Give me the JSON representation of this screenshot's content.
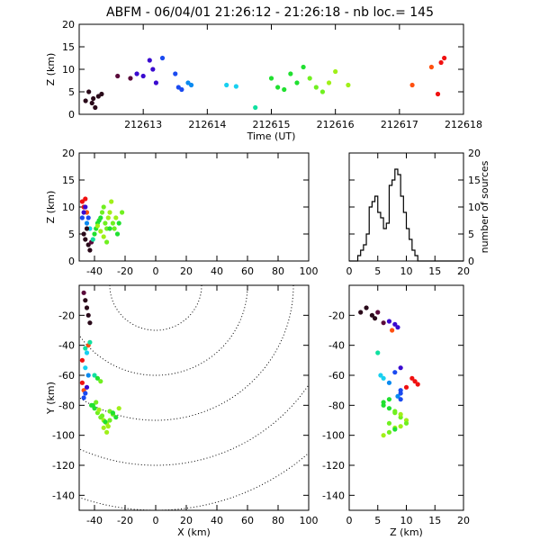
{
  "title": "ABFM - 06/04/01 21:26:12 - 21:26:18 - nb loc.=     145",
  "colors": [
    "#2a0a1a",
    "#5a0a3a",
    "#3a0ad0",
    "#1a4af0",
    "#0a8af0",
    "#18d0f0",
    "#10e0a0",
    "#20e030",
    "#70f020",
    "#a0f018",
    "#ff5010",
    "#f01010"
  ],
  "chart_data": [
    {
      "type": "scatter",
      "name": "time-z",
      "xlabel": "Time (UT)",
      "ylabel": "Z (km)",
      "xlim": [
        212612,
        212618
      ],
      "ylim": [
        0,
        20
      ],
      "xticks": [
        "212613",
        "212614",
        "212615",
        "212616",
        "212617",
        "212618"
      ],
      "yticks": [
        "0",
        "5",
        "10",
        "15",
        "20"
      ],
      "x": [
        212612.1,
        212612.15,
        212612.2,
        212612.22,
        212612.25,
        212612.3,
        212612.35,
        212612.6,
        212612.8,
        212612.9,
        212613.0,
        212613.1,
        212613.15,
        212613.2,
        212613.3,
        212613.5,
        212613.55,
        212613.6,
        212613.7,
        212613.75,
        212614.3,
        212614.45,
        212614.75,
        212615.0,
        212615.1,
        212615.2,
        212615.3,
        212615.4,
        212615.5,
        212615.6,
        212615.7,
        212615.8,
        212615.9,
        212616.0,
        212616.2,
        212617.2,
        212617.5,
        212617.6,
        212617.65,
        212617.7
      ],
      "y": [
        3,
        5,
        2.5,
        3.5,
        1.5,
        4,
        4.5,
        8.5,
        8,
        9,
        8.5,
        12,
        10,
        7,
        12.5,
        9,
        6,
        5.5,
        7,
        6.5,
        6.5,
        6.2,
        1.5,
        8,
        6,
        5.5,
        9,
        7,
        10.5,
        8,
        6,
        5,
        7,
        9.5,
        6.5,
        6.5,
        10.5,
        4.5,
        11.5,
        12.5
      ],
      "c": [
        0,
        0,
        0,
        0,
        0,
        0,
        0,
        1,
        1,
        2,
        2,
        2,
        2,
        2,
        3,
        3,
        3,
        3,
        4,
        4,
        5,
        5,
        6,
        7,
        7,
        7,
        7,
        7,
        7,
        8,
        8,
        8,
        9,
        9,
        9,
        10,
        10,
        11,
        11,
        11
      ]
    },
    {
      "type": "scatter",
      "name": "x-z",
      "xlabel": "",
      "ylabel": "Z (km)",
      "xlim": [
        -50,
        100
      ],
      "ylim": [
        0,
        20
      ],
      "xticks": [
        "-40",
        "-20",
        "0",
        "20",
        "40",
        "60",
        "80",
        "100"
      ],
      "yticks": [
        "0",
        "5",
        "10",
        "15",
        "20"
      ],
      "x": [
        -48,
        -47,
        -46,
        -45,
        -48,
        -47,
        -46,
        -44,
        -45,
        -43,
        -47,
        -46,
        -45,
        -44,
        -43,
        -42,
        -41,
        -40,
        -39,
        -38,
        -37,
        -36,
        -35,
        -34,
        -33,
        -32,
        -31,
        -30,
        -29,
        -28,
        -27,
        -26,
        -25,
        -24,
        -22,
        -38,
        -36,
        -34,
        -32,
        -30
      ],
      "y": [
        11,
        10,
        11.5,
        9,
        8,
        9,
        10,
        8,
        7,
        6,
        5,
        4,
        6,
        3,
        2,
        3.5,
        4,
        5,
        6,
        7,
        7.5,
        8,
        9,
        10,
        7,
        6,
        8,
        9,
        11,
        7,
        6,
        8,
        5,
        7,
        9,
        6.5,
        5.5,
        4.5,
        3.5,
        6
      ],
      "c": [
        11,
        11,
        11,
        10,
        3,
        2,
        2,
        3,
        4,
        5,
        0,
        0,
        0,
        0,
        0,
        1,
        6,
        7,
        7,
        7,
        7,
        7,
        8,
        8,
        8,
        8,
        9,
        9,
        9,
        8,
        8,
        9,
        7,
        7,
        8,
        9,
        9,
        9,
        8,
        7
      ]
    },
    {
      "type": "histogram",
      "name": "z-histogram",
      "xlabel": "",
      "ylabel": "number of sources",
      "xlim": [
        0,
        20
      ],
      "ylim": [
        0,
        20
      ],
      "xticks": [
        "0",
        "5",
        "10",
        "15",
        "20"
      ],
      "yticks": [
        "0",
        "5",
        "10",
        "15",
        "20"
      ],
      "bin_width": 0.5,
      "counts": [
        0,
        0,
        0,
        1,
        2,
        3,
        5,
        10,
        11,
        12,
        9,
        8,
        6,
        7,
        14,
        15,
        17,
        16,
        12,
        9,
        6,
        4,
        2,
        1,
        0,
        0,
        0,
        0,
        0,
        0,
        0,
        0,
        0,
        0,
        0,
        0,
        0,
        0,
        0,
        0
      ]
    },
    {
      "type": "scatter",
      "name": "x-y",
      "xlabel": "X (km)",
      "ylabel": "Y (km)",
      "xlim": [
        -50,
        100
      ],
      "ylim": [
        -150,
        0
      ],
      "xticks": [
        "-40",
        "-20",
        "0",
        "20",
        "40",
        "60",
        "80",
        "100"
      ],
      "yticks": [
        "-140",
        "-120",
        "-100",
        "-80",
        "-60",
        "-40",
        "-20"
      ],
      "range_rings_km": [
        30,
        60,
        90,
        120,
        150
      ],
      "x": [
        -46,
        -45,
        -44,
        -43,
        -47,
        -48,
        -47,
        -46,
        -45,
        -44,
        -47,
        -46,
        -48,
        -45,
        -46,
        -44,
        -43,
        -42,
        -40,
        -38,
        -36,
        -34,
        -32,
        -30,
        -28,
        -26,
        -24,
        -40,
        -38,
        -36,
        -34,
        -32,
        -30,
        -28,
        -41,
        -39,
        -37,
        -35,
        -33,
        -31
      ],
      "y": [
        -10,
        -15,
        -20,
        -25,
        -5,
        -65,
        -70,
        -72,
        -68,
        -60,
        -75,
        -55,
        -50,
        -45,
        -42,
        -40,
        -38,
        -80,
        -82,
        -85,
        -88,
        -90,
        -92,
        -84,
        -86,
        -88,
        -82,
        -60,
        -62,
        -64,
        -95,
        -98,
        -90,
        -85,
        -80,
        -78,
        -83,
        -87,
        -91,
        -94
      ],
      "c": [
        0,
        0,
        0,
        0,
        1,
        11,
        10,
        3,
        2,
        4,
        3,
        5,
        11,
        5,
        6,
        10,
        6,
        7,
        7,
        8,
        8,
        9,
        9,
        8,
        8,
        7,
        9,
        6,
        7,
        8,
        9,
        9,
        8,
        7,
        7,
        8,
        9,
        8,
        7,
        9
      ]
    },
    {
      "type": "scatter",
      "name": "z-y",
      "xlabel": "Z (km)",
      "ylabel": "",
      "xlim": [
        0,
        20
      ],
      "ylim": [
        -150,
        0
      ],
      "xticks": [
        "0",
        "5",
        "10",
        "15",
        "20"
      ],
      "yticks": [
        "-140",
        "-120",
        "-100",
        "-80",
        "-60",
        "-40",
        "-20"
      ],
      "x": [
        2,
        3,
        4,
        4.5,
        5,
        6,
        7,
        8,
        7.5,
        8.5,
        9,
        10,
        11,
        12,
        11.5,
        9,
        8.5,
        9,
        5.5,
        6,
        7,
        8,
        9,
        6,
        7,
        8,
        9,
        10,
        7,
        8,
        6,
        7,
        8,
        9,
        10,
        6,
        7,
        8,
        9,
        5
      ],
      "y": [
        -18,
        -15,
        -20,
        -22,
        -18,
        -25,
        -24,
        -26,
        -30,
        -28,
        -70,
        -68,
        -62,
        -66,
        -64,
        -72,
        -74,
        -76,
        -60,
        -62,
        -65,
        -58,
        -55,
        -80,
        -82,
        -85,
        -88,
        -90,
        -92,
        -95,
        -100,
        -98,
        -96,
        -94,
        -92,
        -78,
        -76,
        -84,
        -86,
        -45
      ],
      "c": [
        0,
        0,
        0,
        0,
        1,
        1,
        2,
        2,
        10,
        2,
        3,
        11,
        11,
        11,
        11,
        3,
        4,
        3,
        5,
        5,
        4,
        3,
        2,
        7,
        7,
        8,
        8,
        9,
        8,
        9,
        9,
        8,
        7,
        9,
        8,
        7,
        7,
        8,
        9,
        6
      ]
    }
  ]
}
